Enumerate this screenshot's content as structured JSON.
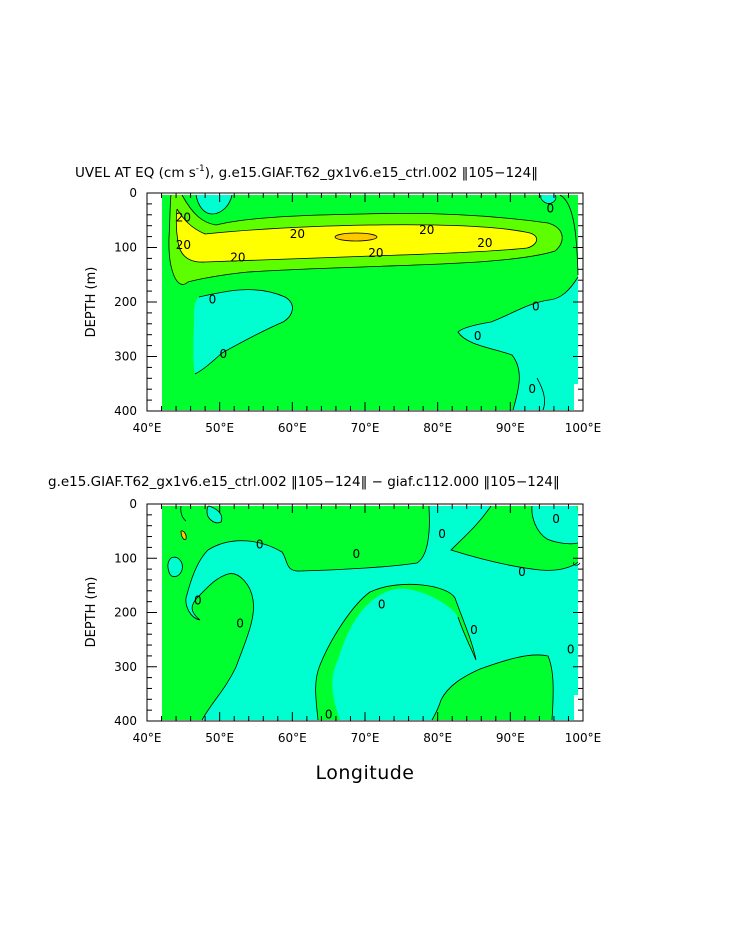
{
  "colors": {
    "green": "#00ff2e",
    "cyan": "#00ffd0",
    "lightgreen": "#5dff00",
    "yellow": "#ffff00",
    "orange": "#ffc800",
    "line": "#000000"
  },
  "xlabel": "Longitude",
  "chart_data": [
    {
      "type": "contour",
      "title": "UVEL AT EQ (cm s",
      "title_sup": "-1",
      "title_rest": "), g.e15.GIAF.T62_gx1v6.e15_ctrl.002 ‖105−124‖",
      "ylabel": "DEPTH (m)",
      "xlim": [
        40,
        100
      ],
      "ylim": [
        400,
        0
      ],
      "x_ticks": [
        "40°E",
        "50°E",
        "60°E",
        "70°E",
        "80°E",
        "90°E",
        "100°E"
      ],
      "y_ticks": [
        "0",
        "100",
        "200",
        "300",
        "400"
      ],
      "contour_labels": [
        {
          "text": "20",
          "lon": 45.0,
          "depth": 45
        },
        {
          "text": "20",
          "lon": 45.0,
          "depth": 95
        },
        {
          "text": "20",
          "lon": 60.7,
          "depth": 75
        },
        {
          "text": "20",
          "lon": 78.5,
          "depth": 68
        },
        {
          "text": "20",
          "lon": 86.5,
          "depth": 92
        },
        {
          "text": "20",
          "lon": 52.5,
          "depth": 118
        },
        {
          "text": "20",
          "lon": 71.5,
          "depth": 110
        },
        {
          "text": "0",
          "lon": 49.0,
          "depth": 195
        },
        {
          "text": "0",
          "lon": 50.5,
          "depth": 295
        },
        {
          "text": "0",
          "lon": 85.5,
          "depth": 262
        },
        {
          "text": "0",
          "lon": 93.5,
          "depth": 208
        },
        {
          "text": "0",
          "lon": 93.0,
          "depth": 360
        },
        {
          "text": "0",
          "lon": 95.5,
          "depth": 28
        }
      ]
    },
    {
      "type": "contour",
      "title": "g.e15.GIAF.T62_gx1v6.e15_ctrl.002 ‖105−124‖ − giaf.c112.000 ‖105−124‖",
      "ylabel": "DEPTH (m)",
      "xlim": [
        40,
        100
      ],
      "ylim": [
        400,
        0
      ],
      "x_ticks": [
        "40°E",
        "50°E",
        "60°E",
        "70°E",
        "80°E",
        "90°E",
        "100°E"
      ],
      "y_ticks": [
        "0",
        "100",
        "200",
        "300",
        "400"
      ],
      "contour_labels": [
        {
          "text": "0",
          "lon": 55.5,
          "depth": 75
        },
        {
          "text": "0",
          "lon": 68.8,
          "depth": 92
        },
        {
          "text": "0",
          "lon": 80.6,
          "depth": 55
        },
        {
          "text": "0",
          "lon": 96.3,
          "depth": 28
        },
        {
          "text": "0",
          "lon": 91.6,
          "depth": 125
        },
        {
          "text": "0",
          "lon": 47.0,
          "depth": 178
        },
        {
          "text": "0",
          "lon": 52.8,
          "depth": 220
        },
        {
          "text": "0",
          "lon": 72.3,
          "depth": 185
        },
        {
          "text": "0",
          "lon": 85.0,
          "depth": 232
        },
        {
          "text": "0",
          "lon": 98.3,
          "depth": 268
        },
        {
          "text": "0",
          "lon": 65.0,
          "depth": 388
        }
      ]
    }
  ]
}
